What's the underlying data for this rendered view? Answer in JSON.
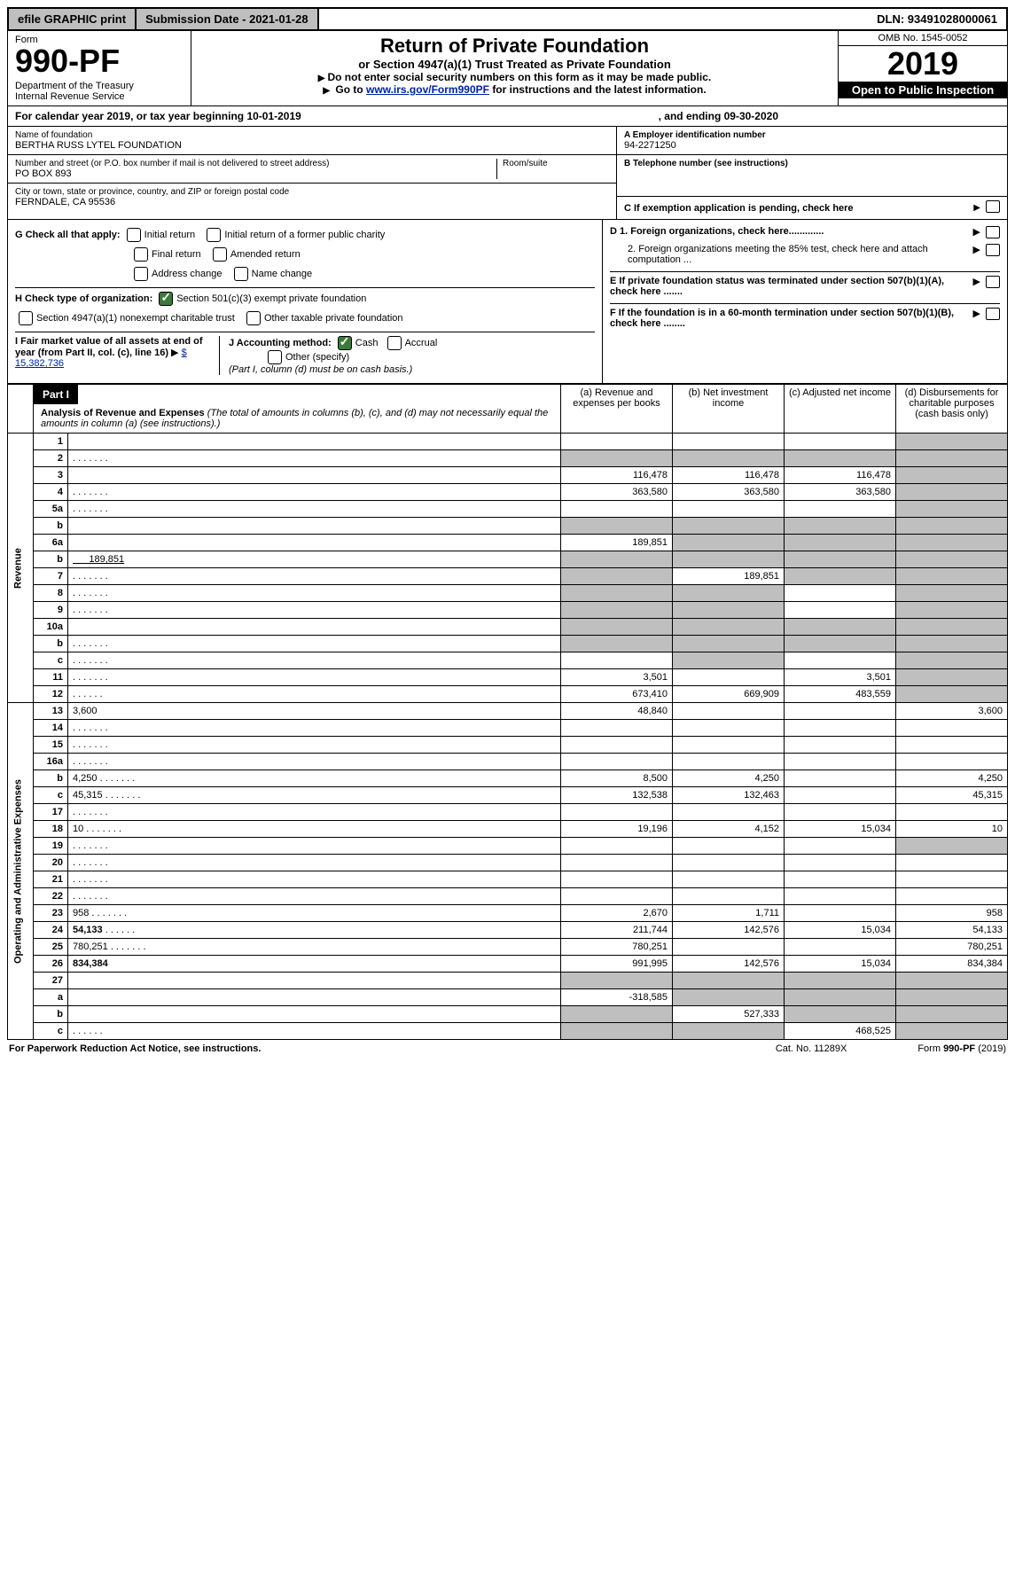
{
  "topbar": {
    "efile": "efile GRAPHIC print",
    "submission_label": "Submission Date - 2021-01-28",
    "dln": "DLN: 93491028000061"
  },
  "header": {
    "form_word": "Form",
    "form_no": "990-PF",
    "dept": "Department of the Treasury\nInternal Revenue Service",
    "title": "Return of Private Foundation",
    "sub": "or Section 4947(a)(1) Trust Treated as Private Foundation",
    "note1": "Do not enter social security numbers on this form as it may be made public.",
    "note2_pre": "Go to ",
    "note2_link": "www.irs.gov/Form990PF",
    "note2_post": " for instructions and the latest information.",
    "omb": "OMB No. 1545-0052",
    "year": "2019",
    "otp": "Open to Public Inspection"
  },
  "cal": {
    "text_a": "For calendar year 2019, or tax year beginning 10-01-2019",
    "text_b": ", and ending 09-30-2020"
  },
  "entity": {
    "name_lbl": "Name of foundation",
    "name_val": "BERTHA RUSS LYTEL FOUNDATION",
    "addr_lbl": "Number and street (or P.O. box number if mail is not delivered to street address)",
    "addr_val": "PO BOX 893",
    "room_lbl": "Room/suite",
    "city_lbl": "City or town, state or province, country, and ZIP or foreign postal code",
    "city_val": "FERNDALE, CA  95536",
    "a_lbl": "A Employer identification number",
    "a_val": "94-2271250",
    "b_lbl": "B Telephone number (see instructions)",
    "c_lbl": "C If exemption application is pending, check here",
    "g_lbl": "G Check all that apply:",
    "g_opts": [
      "Initial return",
      "Initial return of a former public charity",
      "Final return",
      "Amended return",
      "Address change",
      "Name change"
    ],
    "h_lbl": "H Check type of organization:",
    "h_opt1": "Section 501(c)(3) exempt private foundation",
    "h_opt2": "Section 4947(a)(1) nonexempt charitable trust",
    "h_opt3": "Other taxable private foundation",
    "i_lbl": "I Fair market value of all assets at end of year (from Part II, col. (c), line 16)",
    "i_val": "$  15,382,736",
    "j_lbl": "J Accounting method:",
    "j_cash": "Cash",
    "j_accrual": "Accrual",
    "j_other": "Other (specify)",
    "j_note": "(Part I, column (d) must be on cash basis.)",
    "d1": "D 1. Foreign organizations, check here.............",
    "d2": "2. Foreign organizations meeting the 85% test, check here and attach computation ...",
    "e": "E  If private foundation status was terminated under section 507(b)(1)(A), check here .......",
    "f": "F  If the foundation is in a 60-month termination under section 507(b)(1)(B), check here ........"
  },
  "part1": {
    "label": "Part I",
    "title": "Analysis of Revenue and Expenses",
    "title_note": " (The total of amounts in columns (b), (c), and (d) may not necessarily equal the amounts in column (a) (see instructions).)",
    "col_a": "(a)   Revenue and expenses per books",
    "col_b": "(b)  Net investment income",
    "col_c": "(c)  Adjusted net income",
    "col_d": "(d)  Disbursements for charitable purposes (cash basis only)"
  },
  "revenue_label": "Revenue",
  "expenses_label": "Operating and Administrative Expenses",
  "rows": {
    "1": {
      "n": "1",
      "d": "",
      "a": "",
      "b": "",
      "c": ""
    },
    "2": {
      "n": "2",
      "d": "",
      "a": "",
      "b": "",
      "c": "",
      "dots": true
    },
    "3": {
      "n": "3",
      "d": "",
      "a": "116,478",
      "b": "116,478",
      "c": "116,478"
    },
    "4": {
      "n": "4",
      "d": "",
      "a": "363,580",
      "b": "363,580",
      "c": "363,580",
      "dots": true
    },
    "5a": {
      "n": "5a",
      "d": "",
      "a": "",
      "b": "",
      "c": "",
      "dots": true
    },
    "5b": {
      "n": "b",
      "d": "",
      "a": "",
      "b": "",
      "c": ""
    },
    "6a": {
      "n": "6a",
      "d": "",
      "a": "189,851",
      "b": "",
      "c": ""
    },
    "6b": {
      "n": "b",
      "d": "",
      "inline": "189,851",
      "a": "",
      "b": "",
      "c": ""
    },
    "7": {
      "n": "7",
      "d": "",
      "a": "",
      "b": "189,851",
      "c": "",
      "dots": true
    },
    "8": {
      "n": "8",
      "d": "",
      "a": "",
      "b": "",
      "c": "",
      "dots": true
    },
    "9": {
      "n": "9",
      "d": "",
      "a": "",
      "b": "",
      "c": "",
      "dots": true
    },
    "10a": {
      "n": "10a",
      "d": "",
      "a": "",
      "b": "",
      "c": ""
    },
    "10b": {
      "n": "b",
      "d": "",
      "a": "",
      "b": "",
      "c": "",
      "dots": true
    },
    "10c": {
      "n": "c",
      "d": "",
      "a": "",
      "b": "",
      "c": "",
      "dots": true
    },
    "11": {
      "n": "11",
      "d": "",
      "a": "3,501",
      "b": "",
      "c": "3,501",
      "dots": true
    },
    "12": {
      "n": "12",
      "d": "",
      "a": "673,410",
      "b": "669,909",
      "c": "483,559",
      "bold": true,
      "dots": true
    },
    "13": {
      "n": "13",
      "d": "3,600",
      "a": "48,840",
      "b": "",
      "c": ""
    },
    "14": {
      "n": "14",
      "d": "",
      "a": "",
      "b": "",
      "c": "",
      "dots": true
    },
    "15": {
      "n": "15",
      "d": "",
      "a": "",
      "b": "",
      "c": "",
      "dots": true
    },
    "16a": {
      "n": "16a",
      "d": "",
      "a": "",
      "b": "",
      "c": "",
      "dots": true
    },
    "16b": {
      "n": "b",
      "d": "4,250",
      "a": "8,500",
      "b": "4,250",
      "c": "",
      "dots": true
    },
    "16c": {
      "n": "c",
      "d": "45,315",
      "a": "132,538",
      "b": "132,463",
      "c": "",
      "dots": true
    },
    "17": {
      "n": "17",
      "d": "",
      "a": "",
      "b": "",
      "c": "",
      "dots": true
    },
    "18": {
      "n": "18",
      "d": "10",
      "a": "19,196",
      "b": "4,152",
      "c": "15,034",
      "dots": true
    },
    "19": {
      "n": "19",
      "d": "",
      "a": "",
      "b": "",
      "c": "",
      "dots": true
    },
    "20": {
      "n": "20",
      "d": "",
      "a": "",
      "b": "",
      "c": "",
      "dots": true
    },
    "21": {
      "n": "21",
      "d": "",
      "a": "",
      "b": "",
      "c": "",
      "dots": true
    },
    "22": {
      "n": "22",
      "d": "",
      "a": "",
      "b": "",
      "c": "",
      "dots": true
    },
    "23": {
      "n": "23",
      "d": "958",
      "a": "2,670",
      "b": "1,711",
      "c": "",
      "dots": true
    },
    "24": {
      "n": "24",
      "d": "54,133",
      "a": "211,744",
      "b": "142,576",
      "c": "15,034",
      "bold": true,
      "dots": true
    },
    "25": {
      "n": "25",
      "d": "780,251",
      "a": "780,251",
      "b": "",
      "c": "",
      "dots": true
    },
    "26": {
      "n": "26",
      "d": "834,384",
      "a": "991,995",
      "b": "142,576",
      "c": "15,034",
      "bold": true
    },
    "27": {
      "n": "27",
      "d": "",
      "a": "",
      "b": "",
      "c": ""
    },
    "27a": {
      "n": "a",
      "d": "",
      "a": "-318,585",
      "b": "",
      "c": "",
      "bold": true
    },
    "27b": {
      "n": "b",
      "d": "",
      "a": "",
      "b": "527,333",
      "c": "",
      "bold": true
    },
    "27c": {
      "n": "c",
      "d": "",
      "a": "",
      "b": "",
      "c": "468,525",
      "bold": true,
      "dots": true
    }
  },
  "grey_cells": {
    "1": [
      "d"
    ],
    "2": [
      "a",
      "b",
      "c",
      "d"
    ],
    "3": [
      "d"
    ],
    "4": [
      "d"
    ],
    "5a": [
      "d"
    ],
    "5b": [
      "a",
      "b",
      "c",
      "d"
    ],
    "6a": [
      "b",
      "c",
      "d"
    ],
    "6b": [
      "a",
      "b",
      "c",
      "d"
    ],
    "7": [
      "a",
      "c",
      "d"
    ],
    "8": [
      "a",
      "b",
      "d"
    ],
    "9": [
      "a",
      "b",
      "d"
    ],
    "10a": [
      "a",
      "b",
      "c",
      "d"
    ],
    "10b": [
      "a",
      "b",
      "c",
      "d"
    ],
    "10c": [
      "b",
      "d"
    ],
    "11": [
      "d"
    ],
    "12": [
      "d"
    ],
    "19": [
      "d"
    ],
    "27": [
      "a",
      "b",
      "c",
      "d"
    ],
    "27a": [
      "b",
      "c",
      "d"
    ],
    "27b": [
      "a",
      "c",
      "d"
    ],
    "27c": [
      "a",
      "b",
      "d"
    ]
  },
  "footer": {
    "left": "For Paperwork Reduction Act Notice, see instructions.",
    "mid": "Cat. No. 11289X",
    "right": "Form 990-PF (2019)"
  }
}
